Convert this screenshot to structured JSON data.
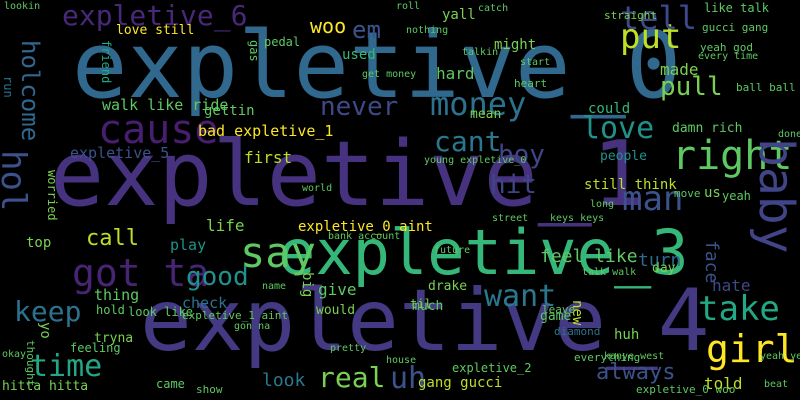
{
  "wordcloud": {
    "background": "#000000",
    "palette": [
      "#440154",
      "#3b528b",
      "#21918c",
      "#5ec962",
      "#fde725"
    ],
    "words": [
      {
        "text": "expletive_0",
        "color": "#31688e",
        "weight": 1.0
      },
      {
        "text": "expletive_1",
        "color": "#46327e",
        "weight": 0.96
      },
      {
        "text": "expletive_4",
        "color": "#443983",
        "weight": 0.92
      },
      {
        "text": "expletive_3",
        "color": "#35b779",
        "weight": 0.85
      },
      {
        "text": "cause",
        "color": "#481f70",
        "weight": 0.35
      },
      {
        "text": "money",
        "color": "#2c728e",
        "weight": 0.34
      },
      {
        "text": "never",
        "color": "#3e4989",
        "weight": 0.3
      },
      {
        "text": "got ta",
        "color": "#482475",
        "weight": 0.4
      },
      {
        "text": "say",
        "color": "#5ec962",
        "weight": 0.38
      },
      {
        "text": "want",
        "color": "#2a788e",
        "weight": 0.35
      },
      {
        "text": "right",
        "color": "#5ec962",
        "weight": 0.36
      },
      {
        "text": "man",
        "color": "#3b528b",
        "weight": 0.34
      },
      {
        "text": "baby",
        "color": "#414487",
        "weight": 0.36
      },
      {
        "text": "girl",
        "color": "#fde725",
        "weight": 0.34
      },
      {
        "text": "take",
        "color": "#22a884",
        "weight": 0.3
      },
      {
        "text": "time",
        "color": "#22a884",
        "weight": 0.3
      },
      {
        "text": "keep",
        "color": "#2c728e",
        "weight": 0.3
      },
      {
        "text": "real",
        "color": "#7ad151",
        "weight": 0.28
      },
      {
        "text": "uh",
        "color": "#3b528b",
        "weight": 0.3
      },
      {
        "text": "cant",
        "color": "#2a788e",
        "weight": 0.28
      },
      {
        "text": "love",
        "color": "#21918c",
        "weight": 0.26
      },
      {
        "text": "put",
        "color": "#bddf26",
        "weight": 0.26
      },
      {
        "text": "pull",
        "color": "#7ad151",
        "weight": 0.22
      },
      {
        "text": "tell",
        "color": "#3e4989",
        "weight": 0.3
      },
      {
        "text": "expletive_6",
        "color": "#482878",
        "weight": 0.24
      },
      {
        "text": "holcome",
        "color": "#31688e",
        "weight": 0.22
      },
      {
        "text": "hol",
        "color": "#3b528b",
        "weight": 0.26
      },
      {
        "text": "woo",
        "color": "#fde725",
        "weight": 0.2
      },
      {
        "text": "em",
        "color": "#3b528b",
        "weight": 0.2
      },
      {
        "text": "hit",
        "color": "#414487",
        "weight": 0.24
      },
      {
        "text": "boy",
        "color": "#414487",
        "weight": 0.22
      },
      {
        "text": "good",
        "color": "#21918c",
        "weight": 0.24
      },
      {
        "text": "call",
        "color": "#bddf26",
        "weight": 0.2
      },
      {
        "text": "hard",
        "color": "#5ec962",
        "weight": 0.16
      },
      {
        "text": "made",
        "color": "#7ad151",
        "weight": 0.16
      },
      {
        "text": "face",
        "color": "#3b528b",
        "weight": 0.16
      },
      {
        "text": "turn",
        "color": "#31688e",
        "weight": 0.18
      },
      {
        "text": "hate",
        "color": "#3e4989",
        "weight": 0.16
      },
      {
        "text": "told",
        "color": "#bddf26",
        "weight": 0.14
      },
      {
        "text": "always",
        "color": "#3b528b",
        "weight": 0.2
      },
      {
        "text": "gang gucci",
        "color": "#bddf26",
        "weight": 0.14
      },
      {
        "text": "look",
        "color": "#2a788e",
        "weight": 0.16
      },
      {
        "text": "feel like",
        "color": "#5ec962",
        "weight": 0.16
      },
      {
        "text": "walk like ride",
        "color": "#5ec962",
        "weight": 0.14
      },
      {
        "text": "bad expletive_1",
        "color": "#fde725",
        "weight": 0.14
      },
      {
        "text": "expletive_5",
        "color": "#3b528b",
        "weight": 0.14
      },
      {
        "text": "expletive_0 aint",
        "color": "#fde725",
        "weight": 0.12
      },
      {
        "text": "first",
        "color": "#bddf26",
        "weight": 0.14
      },
      {
        "text": "life",
        "color": "#7ad151",
        "weight": 0.14
      },
      {
        "text": "play",
        "color": "#21918c",
        "weight": 0.14
      },
      {
        "text": "check",
        "color": "#2c728e",
        "weight": 0.14
      },
      {
        "text": "thing",
        "color": "#5ec962",
        "weight": 0.14
      },
      {
        "text": "give",
        "color": "#5ec962",
        "weight": 0.14
      },
      {
        "text": "would",
        "color": "#7ad151",
        "weight": 0.12
      },
      {
        "text": "drake",
        "color": "#7ad151",
        "weight": 0.12
      },
      {
        "text": "still think",
        "color": "#bddf26",
        "weight": 0.12
      },
      {
        "text": "people",
        "color": "#21918c",
        "weight": 0.12
      },
      {
        "text": "damn rich",
        "color": "#5ec962",
        "weight": 0.12
      },
      {
        "text": "could",
        "color": "#35b779",
        "weight": 0.12
      },
      {
        "text": "might",
        "color": "#7ad151",
        "weight": 0.12
      },
      {
        "text": "yall",
        "color": "#7ad151",
        "weight": 0.12
      },
      {
        "text": "used",
        "color": "#35b779",
        "weight": 0.12
      },
      {
        "text": "like talk",
        "color": "#5ec962",
        "weight": 0.1
      },
      {
        "text": "straight",
        "color": "#7ad151",
        "weight": 0.1
      },
      {
        "text": "gucci gang",
        "color": "#5ec962",
        "weight": 0.1
      },
      {
        "text": "mean",
        "color": "#7ad151",
        "weight": 0.1
      },
      {
        "text": "gettin",
        "color": "#5ec962",
        "weight": 0.1
      },
      {
        "text": "love still",
        "color": "#fde725",
        "weight": 0.1
      },
      {
        "text": "friend",
        "color": "#22a884",
        "weight": 0.1
      },
      {
        "text": "worried",
        "color": "#7ad151",
        "weight": 0.1
      },
      {
        "text": "run",
        "color": "#2c728e",
        "weight": 0.1
      },
      {
        "text": "top",
        "color": "#7ad151",
        "weight": 0.1
      },
      {
        "text": "big",
        "color": "#7ad151",
        "weight": 0.1
      },
      {
        "text": "much",
        "color": "#5ec962",
        "weight": 0.1
      },
      {
        "text": "til",
        "color": "#7ad151",
        "weight": 0.1
      },
      {
        "text": "new",
        "color": "#bddf26",
        "weight": 0.1
      },
      {
        "text": "huh",
        "color": "#7ad151",
        "weight": 0.1
      },
      {
        "text": "game",
        "color": "#5ec962",
        "weight": 0.1
      },
      {
        "text": "diamond",
        "color": "#2c728e",
        "weight": 0.08
      },
      {
        "text": "yeah",
        "color": "#5ec962",
        "weight": 0.1
      },
      {
        "text": "us",
        "color": "#7ad151",
        "weight": 0.1
      },
      {
        "text": "day",
        "color": "#7ad151",
        "weight": 0.1
      },
      {
        "text": "hitta hitta",
        "color": "#7ad151",
        "weight": 0.1
      },
      {
        "text": "tryna",
        "color": "#7ad151",
        "weight": 0.1
      },
      {
        "text": "came",
        "color": "#5ec962",
        "weight": 0.08
      },
      {
        "text": "show",
        "color": "#5ec962",
        "weight": 0.08
      },
      {
        "text": "feeling",
        "color": "#5ec962",
        "weight": 0.08
      },
      {
        "text": "thought",
        "color": "#5ec962",
        "weight": 0.08
      },
      {
        "text": "yo",
        "color": "#7ad151",
        "weight": 0.08
      },
      {
        "text": "hold",
        "color": "#5ec962",
        "weight": 0.08
      },
      {
        "text": "look like",
        "color": "#5ec962",
        "weight": 0.08
      },
      {
        "text": "expletive_1 aint",
        "color": "#5ec962",
        "weight": 0.08
      },
      {
        "text": "expletive_2",
        "color": "#5ec962",
        "weight": 0.08
      },
      {
        "text": "expletive_0 woo",
        "color": "#5ec962",
        "weight": 0.08
      },
      {
        "text": "young expletive_0",
        "color": "#5ec962",
        "weight": 0.07
      },
      {
        "text": "everything",
        "color": "#5ec962",
        "weight": 0.07
      },
      {
        "text": "kanye west",
        "color": "#5ec962",
        "weight": 0.07
      },
      {
        "text": "lookin",
        "color": "#5ec962",
        "weight": 0.07
      },
      {
        "text": "nothing",
        "color": "#5ec962",
        "weight": 0.07
      },
      {
        "text": "talkin",
        "color": "#5ec962",
        "weight": 0.07
      },
      {
        "text": "start",
        "color": "#5ec962",
        "weight": 0.07
      },
      {
        "text": "pedal",
        "color": "#5ec962",
        "weight": 0.07
      },
      {
        "text": "gas",
        "color": "#5ec962",
        "weight": 0.07
      },
      {
        "text": "heart",
        "color": "#5ec962",
        "weight": 0.07
      },
      {
        "text": "yeah god",
        "color": "#5ec962",
        "weight": 0.07
      },
      {
        "text": "every time",
        "color": "#5ec962",
        "weight": 0.07
      },
      {
        "text": "ball ball",
        "color": "#5ec962",
        "weight": 0.07
      },
      {
        "text": "done",
        "color": "#5ec962",
        "weight": 0.07
      },
      {
        "text": "move",
        "color": "#5ec962",
        "weight": 0.07
      },
      {
        "text": "long",
        "color": "#5ec962",
        "weight": 0.07
      },
      {
        "text": "leave",
        "color": "#5ec962",
        "weight": 0.07
      },
      {
        "text": "talk walk",
        "color": "#5ec962",
        "weight": 0.07
      },
      {
        "text": "roll",
        "color": "#5ec962",
        "weight": 0.07
      },
      {
        "text": "catch",
        "color": "#5ec962",
        "weight": 0.07
      },
      {
        "text": "get money",
        "color": "#5ec962",
        "weight": 0.07
      },
      {
        "text": "bank account",
        "color": "#5ec962",
        "weight": 0.07
      },
      {
        "text": "future",
        "color": "#5ec962",
        "weight": 0.07
      },
      {
        "text": "house",
        "color": "#5ec962",
        "weight": 0.07
      },
      {
        "text": "okay",
        "color": "#5ec962",
        "weight": 0.07
      },
      {
        "text": "pretty",
        "color": "#5ec962",
        "weight": 0.07
      },
      {
        "text": "beat",
        "color": "#5ec962",
        "weight": 0.07
      },
      {
        "text": "world",
        "color": "#5ec962",
        "weight": 0.07
      },
      {
        "text": "gon na",
        "color": "#5ec962",
        "weight": 0.07
      },
      {
        "text": "name",
        "color": "#5ec962",
        "weight": 0.07
      },
      {
        "text": "keys keys",
        "color": "#5ec962",
        "weight": 0.07
      },
      {
        "text": "street",
        "color": "#5ec962",
        "weight": 0.07
      },
      {
        "text": "yeah yeah",
        "color": "#5ec962",
        "weight": 0.07
      }
    ]
  }
}
